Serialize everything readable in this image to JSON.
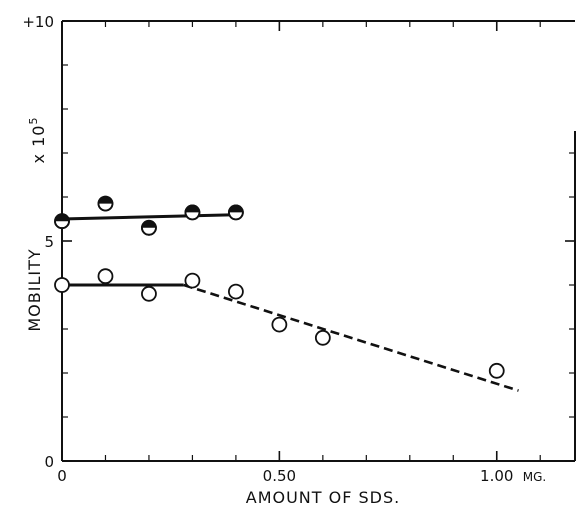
{
  "chart_data": {
    "type": "scatter",
    "title": "",
    "xlabel": "AMOUNT OF SDS.",
    "ylabel": "MOBILITY",
    "ylabel_scale": "x 10",
    "ylabel_scale_exp": "5",
    "xlim": [
      0,
      1.18
    ],
    "ylim": [
      0,
      10
    ],
    "x_ticks": [
      {
        "value": 0,
        "label": "0"
      },
      {
        "value": 0.5,
        "label": "0.50"
      },
      {
        "value": 1.0,
        "label": "1.00"
      }
    ],
    "x_unit": "MG.",
    "y_ticks": [
      {
        "value": 0,
        "label": "0"
      },
      {
        "value": 5,
        "label": "5"
      },
      {
        "value": 10,
        "label": "+10"
      }
    ],
    "y_minor_ticks": [
      1,
      2,
      3,
      4,
      6,
      7,
      8,
      9
    ],
    "x_minor_ticks": [
      0.1,
      0.2,
      0.3,
      0.4,
      0.6,
      0.7,
      0.8,
      0.9,
      1.1
    ],
    "series": [
      {
        "marker": "half-filled-circle",
        "points": [
          [
            0,
            5.45
          ],
          [
            0.1,
            5.85
          ],
          [
            0.2,
            5.3
          ],
          [
            0.3,
            5.65
          ],
          [
            0.4,
            5.65
          ]
        ],
        "lines": [
          {
            "style": "solid",
            "points": [
              [
                0,
                5.5
              ],
              [
                0.41,
                5.6
              ]
            ]
          }
        ]
      },
      {
        "marker": "open-circle",
        "points": [
          [
            0,
            4.0
          ],
          [
            0.1,
            4.2
          ],
          [
            0.2,
            3.8
          ],
          [
            0.3,
            4.1
          ],
          [
            0.4,
            3.85
          ],
          [
            0.5,
            3.1
          ],
          [
            0.6,
            2.8
          ],
          [
            1.0,
            2.05
          ]
        ],
        "lines": [
          {
            "style": "solid",
            "points": [
              [
                0,
                4.0
              ],
              [
                0.28,
                4.0
              ]
            ]
          },
          {
            "style": "dashed",
            "points": [
              [
                0.28,
                4.0
              ],
              [
                1.05,
                1.6
              ]
            ]
          }
        ]
      }
    ],
    "grid": false,
    "legend": "none"
  }
}
